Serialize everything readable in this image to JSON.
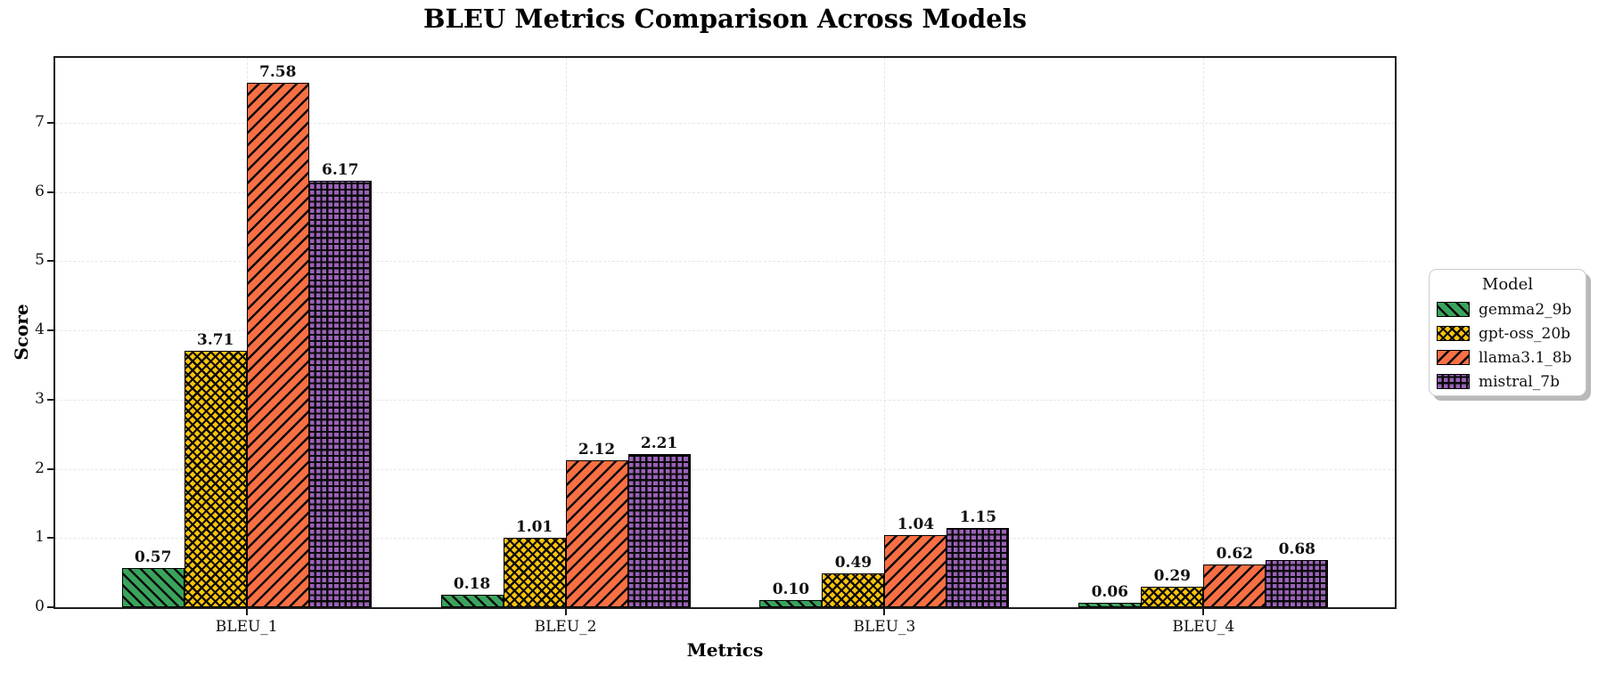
{
  "chart_data": {
    "type": "bar",
    "title": "BLEU Metrics Comparison Across Models",
    "xlabel": "Metrics",
    "ylabel": "Score",
    "categories": [
      "BLEU_1",
      "BLEU_2",
      "BLEU_3",
      "BLEU_4"
    ],
    "series": [
      {
        "name": "gemma2_9b",
        "color": "#3aa35c",
        "hatch": "/",
        "values": [
          0.57,
          0.18,
          0.1,
          0.06
        ],
        "labels": [
          "0.57",
          "0.18",
          "0.10",
          "0.06"
        ]
      },
      {
        "name": "gpt-oss_20b",
        "color": "#fcc30b",
        "hatch": "x",
        "values": [
          3.71,
          1.01,
          0.49,
          0.29
        ],
        "labels": [
          "3.71",
          "1.01",
          "0.49",
          "0.29"
        ]
      },
      {
        "name": "llama3.1_8b",
        "color": "#f96f44",
        "hatch": "\\",
        "values": [
          7.58,
          2.12,
          1.04,
          0.62
        ],
        "labels": [
          "7.58",
          "2.12",
          "1.04",
          "0.62"
        ]
      },
      {
        "name": "mistral_7b",
        "color": "#9b62b8",
        "hatch": "+",
        "values": [
          6.17,
          2.21,
          1.15,
          0.68
        ],
        "labels": [
          "6.17",
          "2.21",
          "1.15",
          "0.68"
        ]
      }
    ],
    "yticks": [
      "0",
      "1",
      "2",
      "3",
      "4",
      "5",
      "6",
      "7"
    ],
    "ylim": [
      0,
      7.94
    ],
    "grid": true,
    "gridline_style": "dashed",
    "bar_edge_color": "#000000",
    "legend": {
      "title": "Model",
      "position": "center-right-outside"
    }
  }
}
